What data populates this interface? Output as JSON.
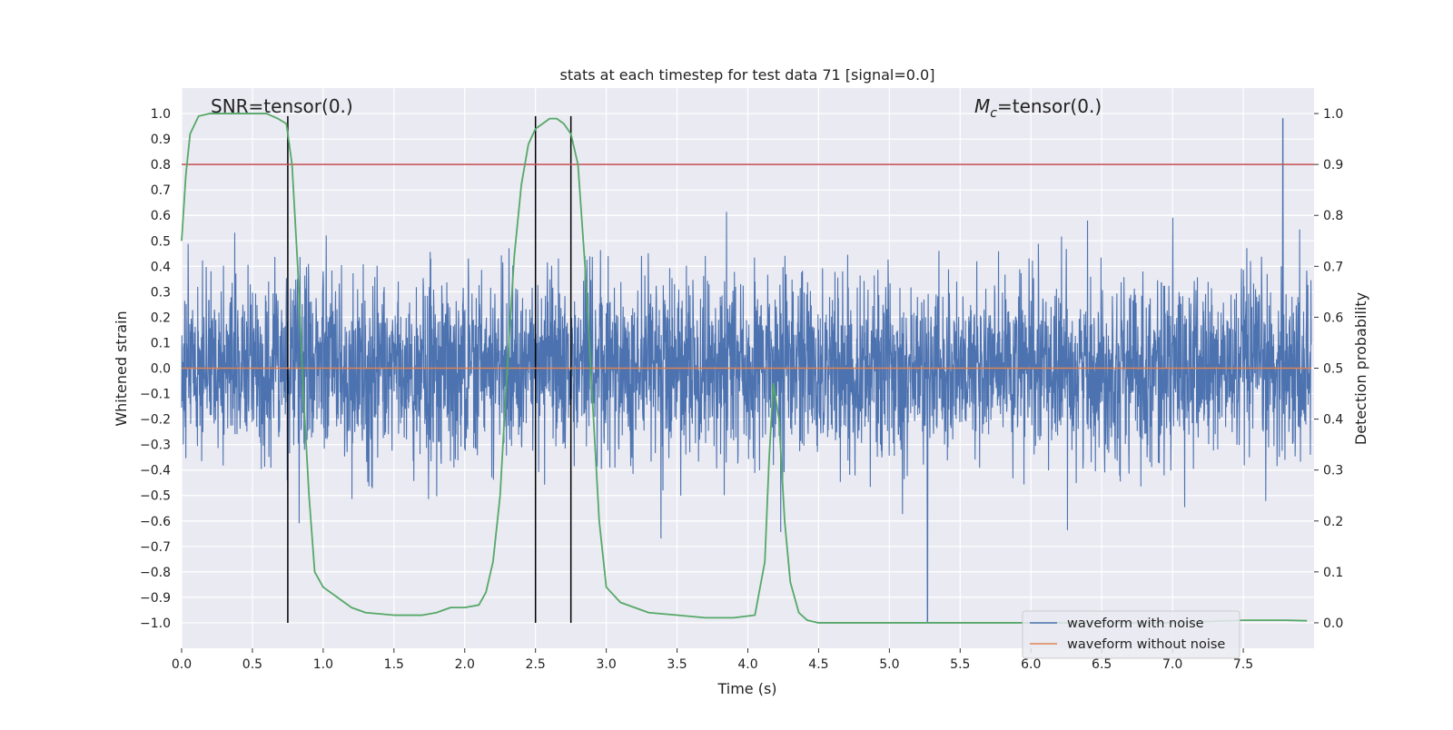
{
  "chart_data": {
    "type": "line",
    "title": "stats at each timestep for test data 71 [signal=0.0]",
    "xlabel": "Time (s)",
    "ylabel_left": "Whitened strain",
    "ylabel_right": "Detection probability",
    "xlim": [
      0.0,
      8.0
    ],
    "ylim_left": [
      -1.1,
      1.1
    ],
    "ylim_right": [
      -0.05,
      1.05
    ],
    "x_ticks": [
      0.0,
      0.5,
      1.0,
      1.5,
      2.0,
      2.5,
      3.0,
      3.5,
      4.0,
      4.5,
      5.0,
      5.5,
      6.0,
      6.5,
      7.0,
      7.5
    ],
    "x_tick_labels": [
      "0.0",
      "0.5",
      "1.0",
      "1.5",
      "2.0",
      "2.5",
      "3.0",
      "3.5",
      "4.0",
      "4.5",
      "5.0",
      "5.5",
      "6.0",
      "6.5",
      "7.0",
      "7.5"
    ],
    "y_left_ticks": [
      1.0,
      0.9,
      0.8,
      0.7,
      0.6,
      0.5,
      0.4,
      0.3,
      0.2,
      0.1,
      0.0,
      -0.1,
      -0.2,
      -0.3,
      -0.4,
      -0.5,
      -0.6,
      -0.7,
      -0.8,
      -0.9,
      -1.0
    ],
    "y_left_tick_labels": [
      "1.0",
      "0.9",
      "0.8",
      "0.7",
      "0.6",
      "0.5",
      "0.4",
      "0.3",
      "0.2",
      "0.1",
      "0.0",
      "−0.1",
      "−0.2",
      "−0.3",
      "−0.4",
      "−0.5",
      "−0.6",
      "−0.7",
      "−0.8",
      "−0.9",
      "−1.0"
    ],
    "y_right_ticks": [
      1.0,
      0.9,
      0.8,
      0.7,
      0.6,
      0.5,
      0.4,
      0.3,
      0.2,
      0.1,
      0.0
    ],
    "y_right_tick_labels": [
      "1.0",
      "0.9",
      "0.8",
      "0.7",
      "0.6",
      "0.5",
      "0.4",
      "0.3",
      "0.2",
      "0.1",
      "0.0"
    ],
    "annotations": {
      "snr": "SNR=tensor(0.)",
      "mc_symbol": "M",
      "mc_subscript": "c",
      "mc_value": "=tensor(0.)"
    },
    "threshold_right": 0.9,
    "vertical_markers_x": [
      0.75,
      2.5,
      2.75
    ],
    "series": [
      {
        "name": "waveform with noise",
        "axis": "left",
        "color": "#4c72b0",
        "style": "dense noise",
        "approx_amplitude": 0.28,
        "peak_x": 7.78,
        "peak_y": 0.98,
        "min_x": 5.27,
        "min_y": -1.0
      },
      {
        "name": "waveform without noise",
        "axis": "left",
        "color": "#dd8452",
        "constant_value": 0.0
      },
      {
        "name": "detection probability",
        "axis": "right",
        "color": "#55a868",
        "x": [
          0.0,
          0.03,
          0.06,
          0.12,
          0.2,
          0.3,
          0.4,
          0.5,
          0.6,
          0.68,
          0.74,
          0.78,
          0.82,
          0.86,
          0.9,
          0.94,
          1.0,
          1.1,
          1.2,
          1.3,
          1.5,
          1.7,
          1.8,
          1.9,
          2.0,
          2.1,
          2.15,
          2.2,
          2.25,
          2.3,
          2.35,
          2.4,
          2.45,
          2.5,
          2.55,
          2.6,
          2.65,
          2.7,
          2.75,
          2.8,
          2.85,
          2.9,
          2.95,
          3.0,
          3.1,
          3.3,
          3.5,
          3.7,
          3.9,
          4.05,
          4.12,
          4.15,
          4.18,
          4.22,
          4.26,
          4.3,
          4.36,
          4.42,
          4.5,
          5.0,
          6.0,
          7.0,
          7.5,
          7.8,
          7.95
        ],
        "y": [
          0.75,
          0.88,
          0.96,
          0.995,
          1.0,
          1.0,
          1.0,
          1.0,
          1.0,
          0.99,
          0.98,
          0.9,
          0.7,
          0.45,
          0.25,
          0.1,
          0.07,
          0.05,
          0.03,
          0.02,
          0.015,
          0.015,
          0.02,
          0.03,
          0.03,
          0.035,
          0.06,
          0.12,
          0.25,
          0.5,
          0.72,
          0.86,
          0.94,
          0.97,
          0.98,
          0.99,
          0.99,
          0.98,
          0.96,
          0.9,
          0.7,
          0.45,
          0.2,
          0.07,
          0.04,
          0.02,
          0.015,
          0.01,
          0.01,
          0.015,
          0.12,
          0.32,
          0.47,
          0.4,
          0.2,
          0.08,
          0.02,
          0.005,
          0.0,
          0.0,
          0.0,
          0.0,
          0.005,
          0.005,
          0.004
        ]
      }
    ],
    "legend": {
      "placement": "lower-right",
      "entries": [
        "waveform with noise",
        "waveform without noise"
      ]
    },
    "grid": true
  },
  "colors": {
    "plot_background": "#eaeaf2",
    "grid": "#ffffff",
    "noise": "#4c72b0",
    "clean": "#dd8452",
    "probability": "#55a868",
    "threshold": "#c44e52",
    "markers": "#000000"
  }
}
